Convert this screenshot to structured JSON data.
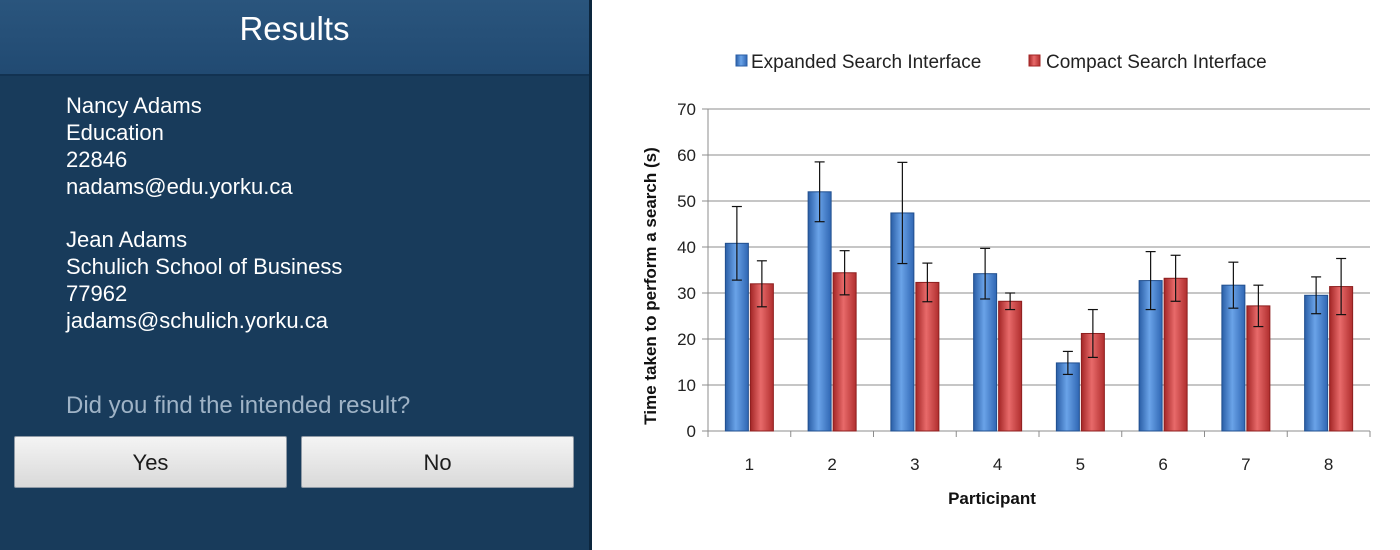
{
  "phone": {
    "title": "Results",
    "results": [
      {
        "name": "Nancy Adams",
        "department": "Education",
        "extension": "22846",
        "email": "nadams@edu.yorku.ca"
      },
      {
        "name": "Jean Adams",
        "department": "Schulich School of Business",
        "extension": "77962",
        "email": "jadams@schulich.yorku.ca"
      }
    ],
    "question": "Did you find the intended result?",
    "yes_label": "Yes",
    "no_label": "No",
    "colors": {
      "background": "#183b5b",
      "header": "#2a557d",
      "question_text": "#9fb3c6"
    }
  },
  "chart_data": {
    "type": "bar",
    "title": "",
    "xlabel": "Participant",
    "ylabel": "Time taken to perform a search (s)",
    "categories": [
      "1",
      "2",
      "3",
      "4",
      "5",
      "6",
      "7",
      "8"
    ],
    "ylim": [
      0,
      70
    ],
    "yticks": [
      0,
      10,
      20,
      30,
      40,
      50,
      60,
      70
    ],
    "grid": true,
    "legend_position": "top",
    "series": [
      {
        "name": "Expanded Search Interface",
        "color": "#3a78c9",
        "values": [
          40.8,
          52,
          47.4,
          34.2,
          14.8,
          32.7,
          31.7,
          29.5
        ],
        "error": [
          8,
          6.5,
          11,
          5.5,
          2.5,
          6.3,
          5,
          4
        ]
      },
      {
        "name": "Compact Search Interface",
        "color": "#c93a3a",
        "values": [
          32,
          34.4,
          32.3,
          28.2,
          21.2,
          33.2,
          27.2,
          31.4
        ],
        "error": [
          5,
          4.8,
          4.2,
          1.8,
          5.2,
          5,
          4.5,
          6.1
        ]
      }
    ]
  }
}
